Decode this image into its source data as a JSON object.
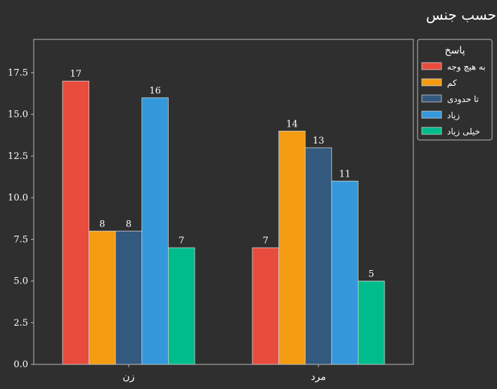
{
  "chart_data": {
    "type": "bar",
    "title": "وجود ساز و کارکارآمد برای کنترل رفتارهای ناسالم بین فردی بر حسب جنس",
    "xlabel": "",
    "ylabel": "",
    "categories": [
      "زن",
      "مرد"
    ],
    "ylim": [
      0,
      19.5
    ],
    "yticks": [
      "0.0",
      "2.5",
      "5.0",
      "7.5",
      "10.0",
      "12.5",
      "15.0",
      "17.5"
    ],
    "legend_title": "پاسخ",
    "legend_position": "outside-top-right",
    "grid": false,
    "series": [
      {
        "name": "به هیچ وجه",
        "color": "#e74c3c",
        "values": [
          17,
          7
        ]
      },
      {
        "name": "کم",
        "color": "#f39c12",
        "values": [
          8,
          14
        ]
      },
      {
        "name": "تا حدودی",
        "color": "#34597f",
        "values": [
          8,
          13
        ]
      },
      {
        "name": "زیاد",
        "color": "#3498db",
        "values": [
          16,
          11
        ]
      },
      {
        "name": "خیلی زیاد",
        "color": "#00bc8c",
        "values": [
          7,
          5
        ]
      }
    ]
  },
  "colors": {
    "background": "#2f2f2f",
    "axis": "#bbbbbb",
    "bar_edge": "#cfcfcf"
  }
}
